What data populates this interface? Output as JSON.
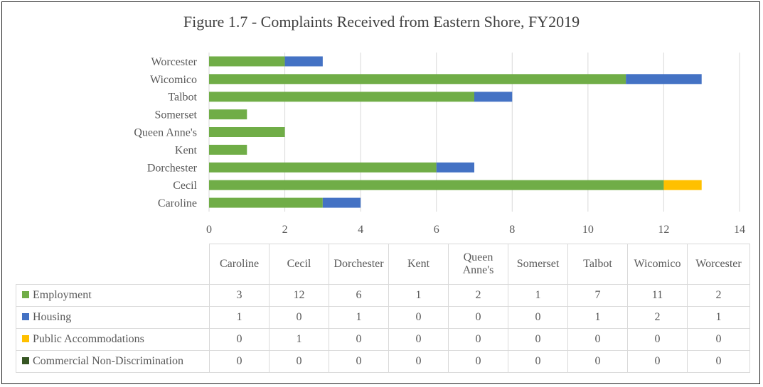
{
  "chart_data": {
    "type": "bar",
    "orientation": "horizontal",
    "stacked": true,
    "title": "Figure 1.7 - Complaints Received from Eastern Shore, FY2019",
    "categories": [
      "Caroline",
      "Cecil",
      "Dorchester",
      "Kent",
      "Queen Anne's",
      "Somerset",
      "Talbot",
      "Wicomico",
      "Worcester"
    ],
    "series": [
      {
        "name": "Employment",
        "color": "#70ad47",
        "values": [
          3,
          12,
          6,
          1,
          2,
          1,
          7,
          11,
          2
        ]
      },
      {
        "name": "Housing",
        "color": "#4472c4",
        "values": [
          1,
          0,
          1,
          0,
          0,
          0,
          1,
          2,
          1
        ]
      },
      {
        "name": "Public Accommodations",
        "color": "#ffc000",
        "values": [
          0,
          1,
          0,
          0,
          0,
          0,
          0,
          0,
          0
        ]
      },
      {
        "name": "Commercial Non-Discrimination",
        "color": "#375623",
        "values": [
          0,
          0,
          0,
          0,
          0,
          0,
          0,
          0,
          0
        ]
      }
    ],
    "xlim": [
      0,
      14
    ],
    "xticks": [
      "0",
      "2",
      "4",
      "6",
      "8",
      "10",
      "12",
      "14"
    ],
    "grid": true,
    "legend": "data table below chart"
  }
}
